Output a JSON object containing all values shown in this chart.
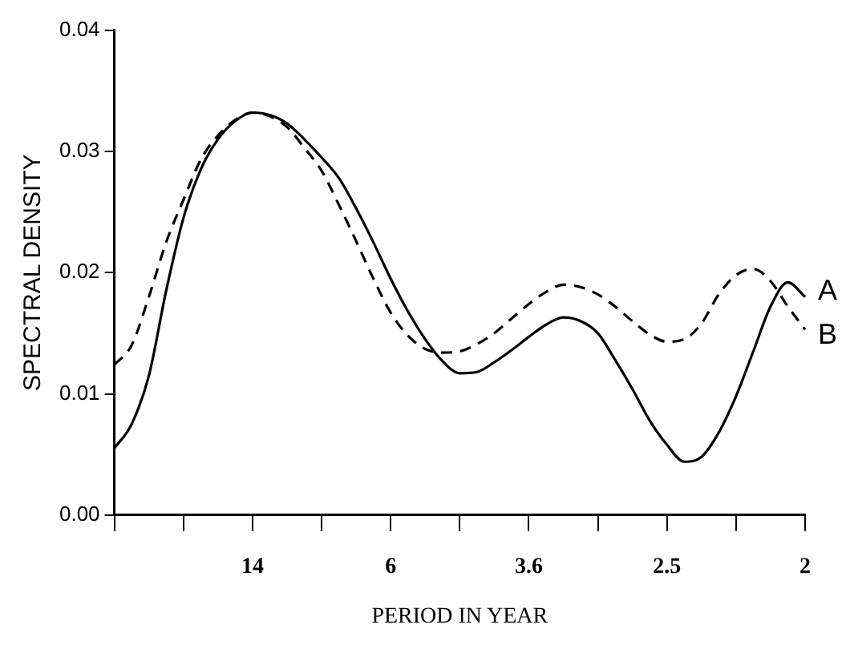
{
  "chart_data": {
    "type": "line",
    "xlabel": "PERIOD IN YEAR",
    "ylabel": "SPECTRAL DENSITY",
    "ylim": [
      0,
      0.04
    ],
    "categories": [
      null,
      null,
      null,
      null,
      null,
      null,
      null,
      null,
      "14",
      null,
      null,
      null,
      null,
      null,
      null,
      null,
      "6",
      null,
      null,
      null,
      null,
      null,
      null,
      null,
      "3.6",
      null,
      null,
      null,
      null,
      null,
      null,
      null,
      "2.5",
      null,
      null,
      null,
      null,
      null,
      null,
      null,
      "2"
    ],
    "yticks": [
      {
        "value": 0,
        "label": "0.00"
      },
      {
        "value": 0.01,
        "label": "0.01"
      },
      {
        "value": 0.02,
        "label": "0.02"
      },
      {
        "value": 0.03,
        "label": "0.03"
      },
      {
        "value": 0.04,
        "label": "0.04"
      }
    ],
    "grid": false,
    "legend": false,
    "marker": "none",
    "series": [
      {
        "name": "A",
        "color": "#000000",
        "line_style": "solid",
        "values": [
          0.0055,
          0.0075,
          0.0115,
          0.0185,
          0.0245,
          0.0285,
          0.031,
          0.0325,
          0.0332,
          0.033,
          0.0323,
          0.031,
          0.0295,
          0.0278,
          0.0253,
          0.0225,
          0.0195,
          0.0168,
          0.0145,
          0.0127,
          0.0117,
          0.0118,
          0.0126,
          0.0136,
          0.0147,
          0.0157,
          0.0163,
          0.016,
          0.015,
          0.0128,
          0.0104,
          0.0078,
          0.0058,
          0.0044,
          0.0048,
          0.0068,
          0.0098,
          0.0135,
          0.0172,
          0.0192,
          0.018
        ]
      },
      {
        "name": "B",
        "color": "#000000",
        "line_style": "dashed",
        "values": [
          0.0124,
          0.014,
          0.018,
          0.0225,
          0.026,
          0.0293,
          0.0313,
          0.0326,
          0.0332,
          0.0329,
          0.032,
          0.0303,
          0.0284,
          0.0256,
          0.0226,
          0.0195,
          0.0167,
          0.0148,
          0.0137,
          0.0134,
          0.0135,
          0.0141,
          0.015,
          0.0162,
          0.0174,
          0.0184,
          0.019,
          0.0188,
          0.0182,
          0.0172,
          0.016,
          0.0149,
          0.0143,
          0.0145,
          0.0158,
          0.0182,
          0.0198,
          0.0203,
          0.0193,
          0.0172,
          0.0153
        ]
      }
    ]
  }
}
